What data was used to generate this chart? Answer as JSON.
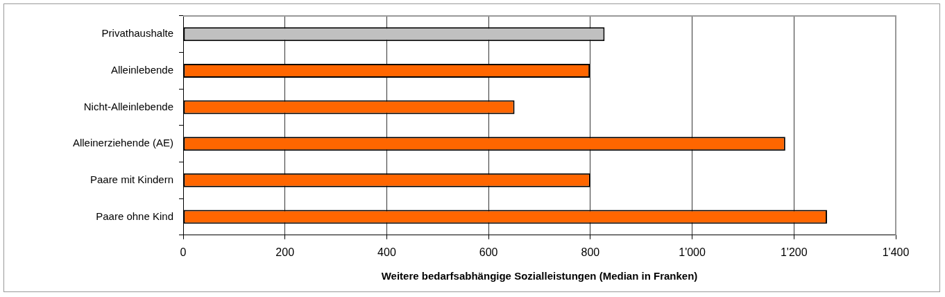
{
  "chart_data": {
    "type": "bar",
    "orientation": "horizontal",
    "xlabel": "Weitere bedarfsabhängige Sozialleistungen (Median in Franken)",
    "categories": [
      "Privathaushalte",
      "Alleinlebende",
      "Nicht-Alleinlebende",
      "Alleinerziehende (AE)",
      "Paare mit Kindern",
      "Paare ohne Kind"
    ],
    "values": [
      828,
      799,
      651,
      1183,
      800,
      1265
    ],
    "colors": [
      "#c0c0c0",
      "#ff6600",
      "#ff6600",
      "#ff6600",
      "#ff6600",
      "#ff6600"
    ],
    "xlim": [
      0,
      1400
    ],
    "xticks": [
      0,
      200,
      400,
      600,
      800,
      {
        "value": 1000,
        "label": "1'000"
      },
      {
        "value": 1200,
        "label": "1'200"
      },
      {
        "value": 1400,
        "label": "1'400"
      }
    ],
    "grid": "x",
    "legend": false
  }
}
